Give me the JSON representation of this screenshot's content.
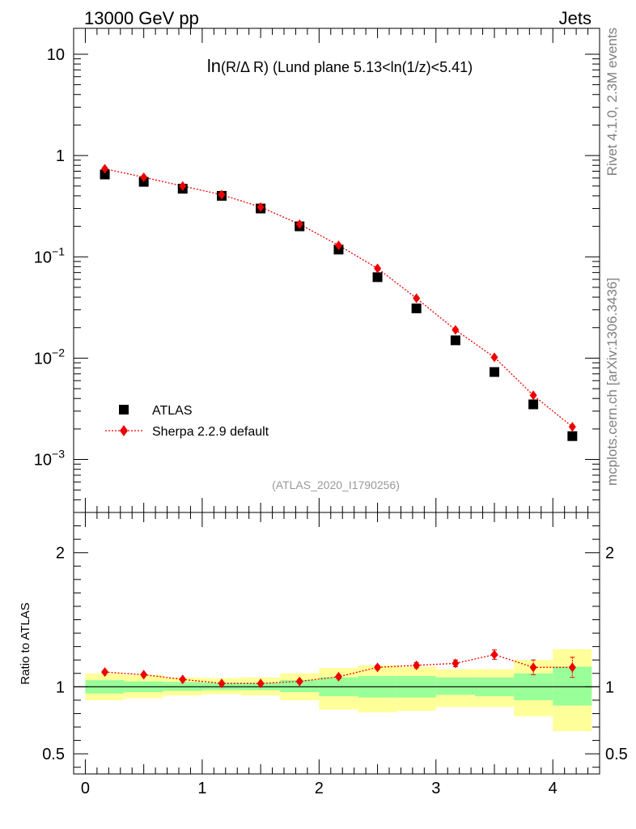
{
  "header": {
    "left": "13000 GeV pp",
    "right": "Jets"
  },
  "side_labels": {
    "top": "Rivet 4.1.0,  2.3M events",
    "bottom": "mcplots.cern.ch [arXiv:1306.3436]"
  },
  "chart_data": [
    {
      "type": "scatter",
      "title_prefix": "ln",
      "title_rest": "(R/Δ R) (Lund plane 5.13<ln(1/z)<5.41)",
      "watermark": "(ATLAS_2020_I1790256)",
      "yscale": "log",
      "ylim": [
        0.0003,
        18
      ],
      "xlim": [
        -0.1,
        4.4
      ],
      "y_ticks": [
        {
          "label": "10",
          "value": 10
        },
        {
          "label": "1",
          "value": 1
        },
        {
          "base": "10",
          "exp": "−1",
          "value": 0.1
        },
        {
          "base": "10",
          "exp": "−2",
          "value": 0.01
        },
        {
          "base": "10",
          "exp": "−3",
          "value": 0.001
        }
      ],
      "legend": {
        "position": "lower-left",
        "entries": [
          "ATLAS",
          "Sherpa 2.2.9 default"
        ]
      },
      "x": [
        0.167,
        0.5,
        0.833,
        1.167,
        1.5,
        1.833,
        2.167,
        2.5,
        2.833,
        3.167,
        3.5,
        3.833,
        4.167
      ],
      "series": [
        {
          "name": "ATLAS",
          "color": "#000000",
          "marker": "square",
          "values": [
            0.65,
            0.55,
            0.47,
            0.4,
            0.3,
            0.2,
            0.118,
            0.063,
            0.031,
            0.015,
            0.0073,
            0.0035,
            0.0017
          ]
        },
        {
          "name": "Sherpa 2.2.9 default",
          "color": "#ee0000",
          "marker": "diamond",
          "line": "dotted",
          "values": [
            0.74,
            0.61,
            0.5,
            0.41,
            0.31,
            0.21,
            0.13,
            0.077,
            0.039,
            0.019,
            0.0102,
            0.0043,
            0.0021
          ]
        }
      ]
    },
    {
      "type": "scatter",
      "ylabel": "Ratio to ATLAS",
      "ylim": [
        0.35,
        2.3
      ],
      "xlim": [
        -0.1,
        4.4
      ],
      "y_ticks": [
        {
          "label": "2",
          "value": 2
        },
        {
          "label": "1",
          "value": 1
        },
        {
          "label": "0.5",
          "value": 0.5
        }
      ],
      "x_tick_labels": [
        "0",
        "1",
        "2",
        "3",
        "4"
      ],
      "x_ticks": [
        0,
        1,
        2,
        3,
        4
      ],
      "bin_edges": [
        0,
        0.333,
        0.667,
        1.0,
        1.333,
        1.667,
        2.0,
        2.333,
        2.667,
        3.0,
        3.333,
        3.667,
        4.0,
        4.333
      ],
      "band_inner": {
        "color": "#99ff99",
        "low": [
          0.95,
          0.96,
          0.97,
          0.975,
          0.975,
          0.96,
          0.93,
          0.92,
          0.92,
          0.94,
          0.93,
          0.9,
          0.86
        ],
        "high": [
          1.05,
          1.04,
          1.035,
          1.03,
          1.03,
          1.05,
          1.07,
          1.08,
          1.08,
          1.07,
          1.07,
          1.1,
          1.15
        ]
      },
      "band_outer": {
        "color": "#ffff99",
        "low": [
          0.9,
          0.915,
          0.935,
          0.945,
          0.935,
          0.9,
          0.83,
          0.81,
          0.82,
          0.85,
          0.85,
          0.78,
          0.67
        ],
        "high": [
          1.1,
          1.09,
          1.07,
          1.065,
          1.07,
          1.1,
          1.14,
          1.16,
          1.15,
          1.13,
          1.13,
          1.2,
          1.28
        ]
      },
      "reference": 1.0,
      "x": [
        0.167,
        0.5,
        0.833,
        1.167,
        1.5,
        1.833,
        2.167,
        2.5,
        2.833,
        3.167,
        3.5,
        3.833,
        4.167
      ],
      "series": [
        {
          "name": "Sherpa 2.2.9 default",
          "color": "#ee0000",
          "marker": "diamond",
          "line": "dotted",
          "values": [
            1.11,
            1.09,
            1.055,
            1.025,
            1.025,
            1.04,
            1.075,
            1.145,
            1.16,
            1.175,
            1.24,
            1.145,
            1.145
          ],
          "errors": [
            0.012,
            0.01,
            0.01,
            0.01,
            0.01,
            0.012,
            0.015,
            0.015,
            0.02,
            0.025,
            0.035,
            0.055,
            0.075
          ]
        }
      ]
    }
  ]
}
